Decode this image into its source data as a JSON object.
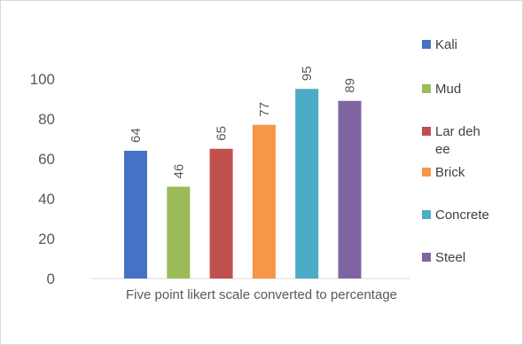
{
  "chart_data": {
    "type": "bar",
    "xlabel": "Five point likert scale converted to percentage",
    "ylim": [
      0,
      100
    ],
    "yticks": [
      0,
      20,
      40,
      60,
      80,
      100
    ],
    "grid": false,
    "legend_position": "right",
    "series": [
      {
        "name": "Kali",
        "values": [
          64
        ],
        "color": "#4472C4"
      },
      {
        "name": "Mud",
        "values": [
          46
        ],
        "color": "#9BBB59"
      },
      {
        "name": "Lar deh ee",
        "values": [
          65
        ],
        "color": "#C0504D"
      },
      {
        "name": "Brick",
        "values": [
          77
        ],
        "color": "#F79646"
      },
      {
        "name": "Concrete",
        "values": [
          95
        ],
        "color": "#4BACC6"
      },
      {
        "name": "Steel",
        "values": [
          89
        ],
        "color": "#8064A2"
      }
    ]
  }
}
